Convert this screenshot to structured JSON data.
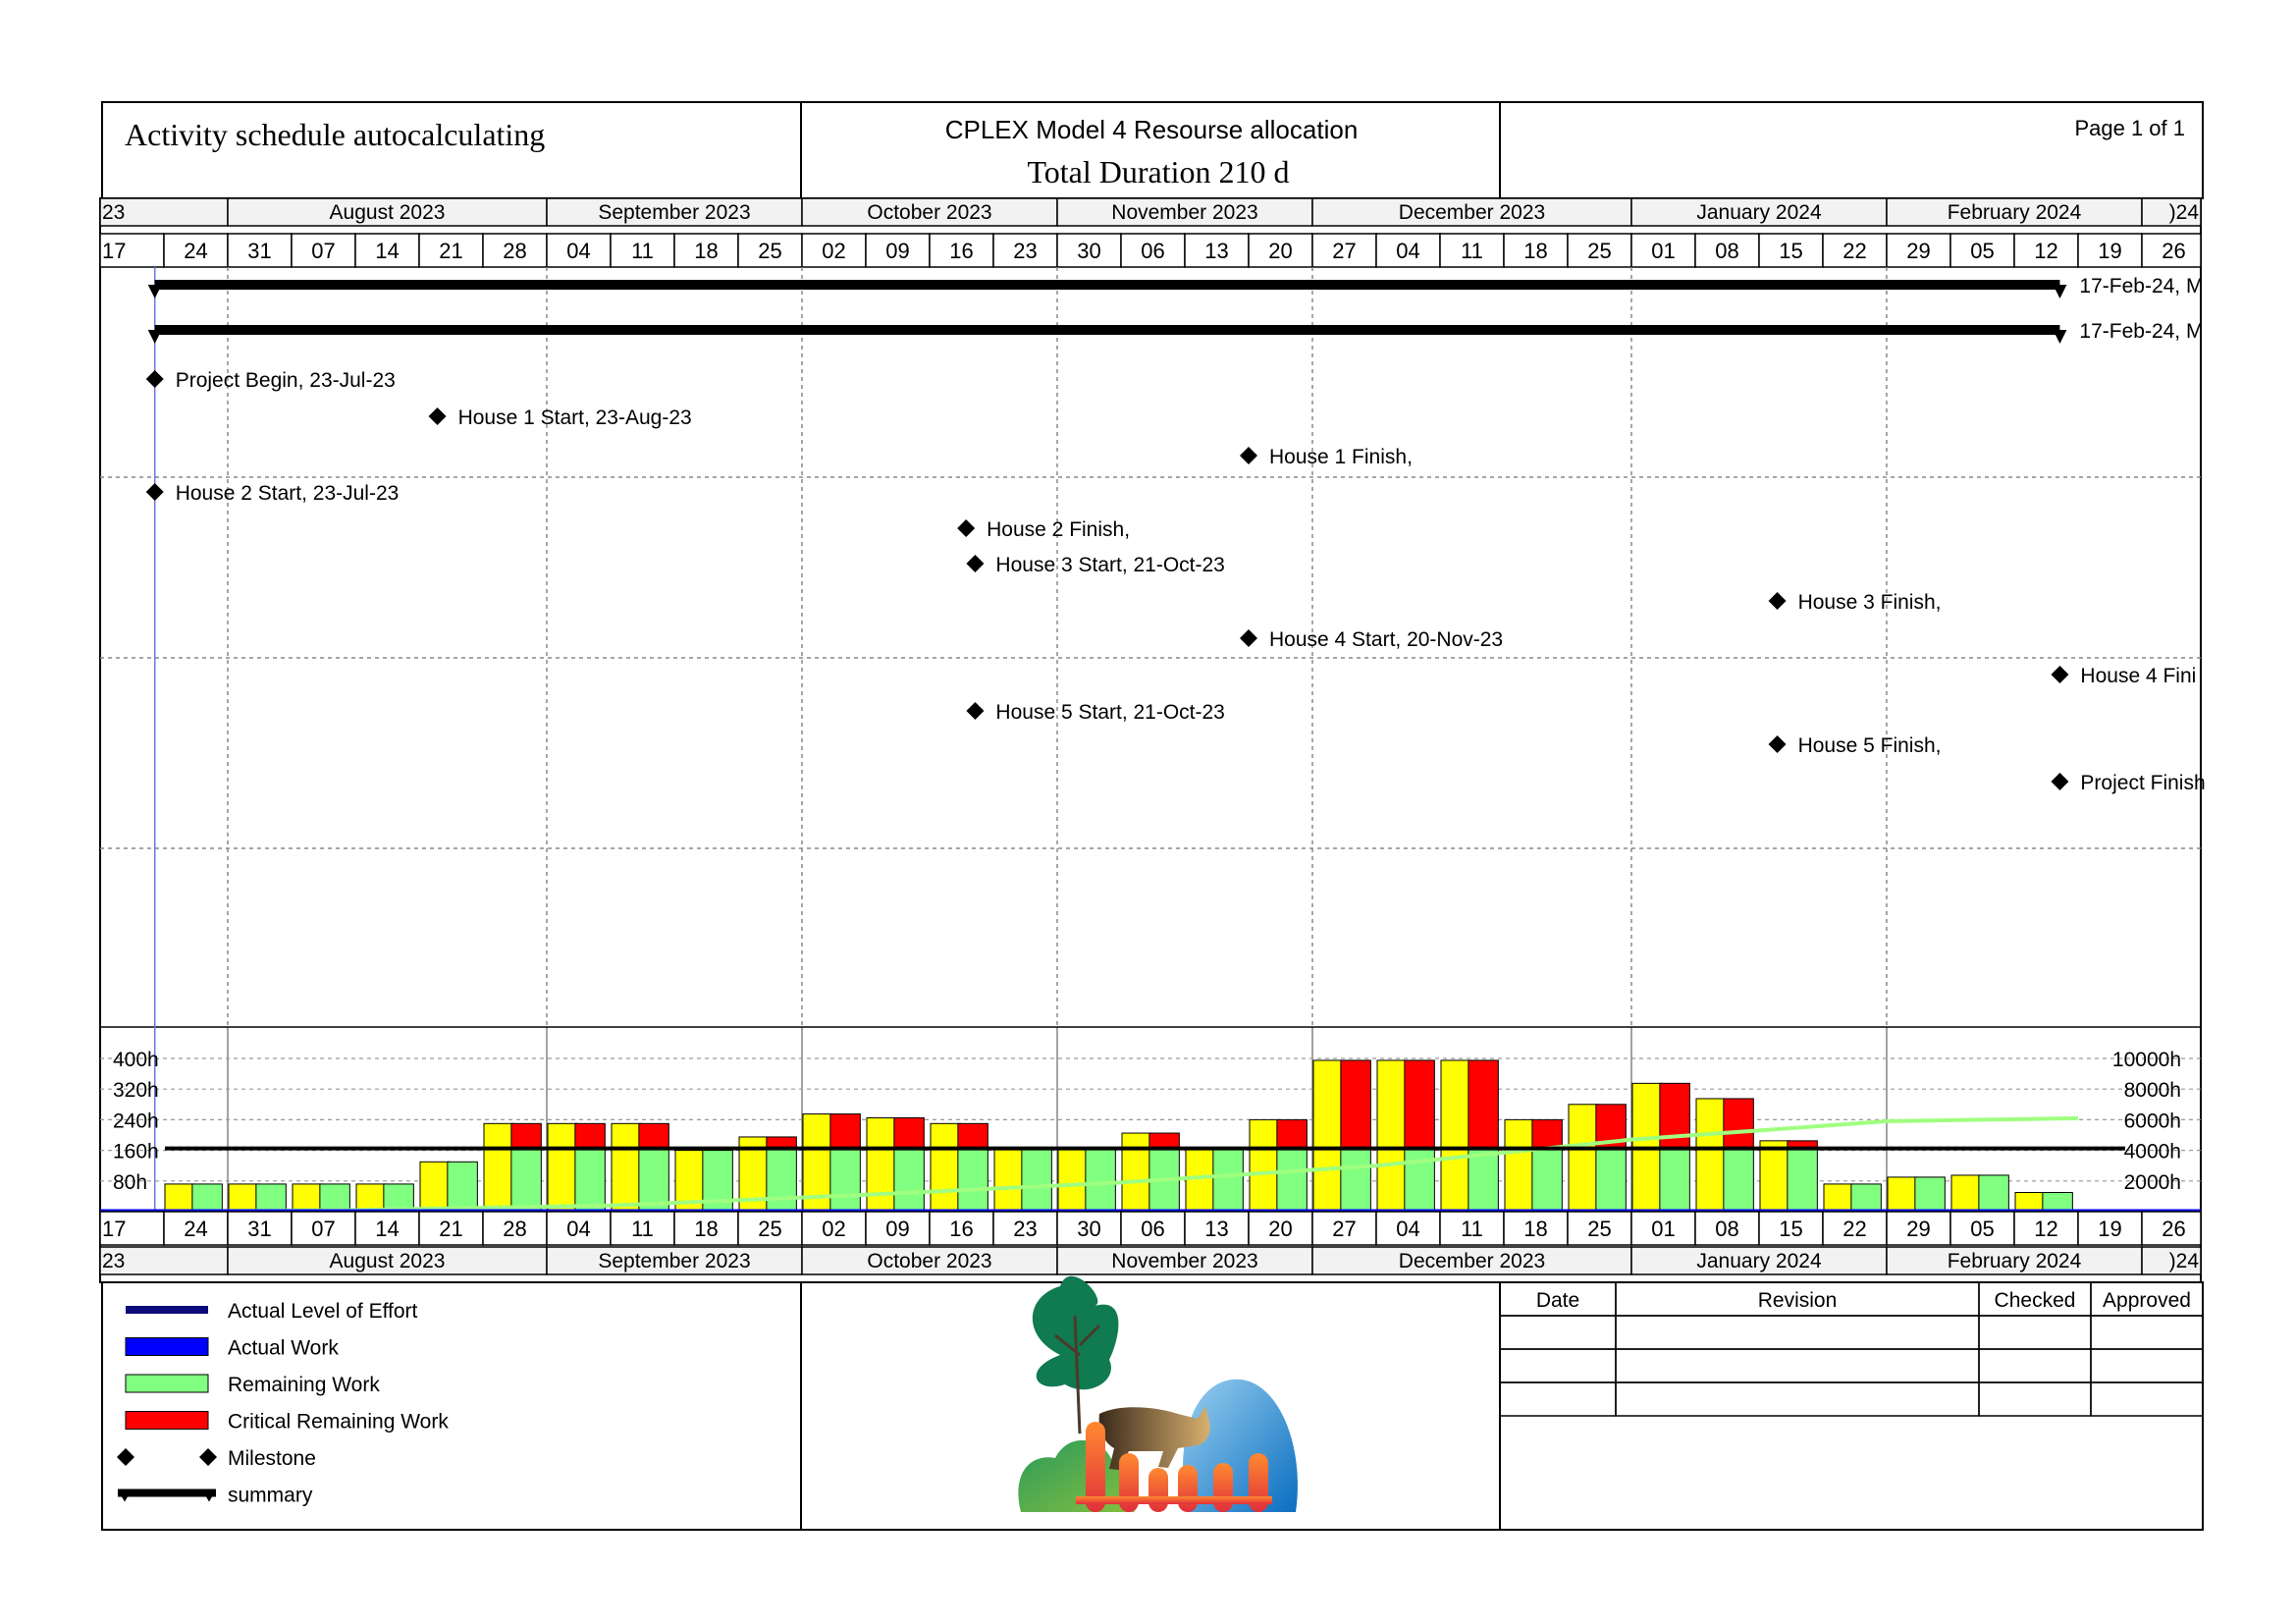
{
  "header": {
    "title": "Activity schedule autocalculating",
    "model": "CPLEX Model 4 Resourse allocation",
    "duration": "Total Duration 210 d",
    "page": "Page 1 of 1"
  },
  "timescale": {
    "start_date": "2023-07-17",
    "week_labels": [
      "17",
      "24",
      "31",
      "07",
      "14",
      "21",
      "28",
      "04",
      "11",
      "18",
      "25",
      "02",
      "09",
      "16",
      "23",
      "30",
      "06",
      "13",
      "20",
      "27",
      "04",
      "11",
      "18",
      "25",
      "01",
      "08",
      "15",
      "22",
      "29",
      "05",
      "12",
      "19",
      "26"
    ],
    "months": [
      {
        "label": "23",
        "start": "2023-07-17",
        "end": "2023-07-31"
      },
      {
        "label": "August 2023",
        "start": "2023-07-31",
        "end": "2023-09-04"
      },
      {
        "label": "September 2023",
        "start": "2023-09-04",
        "end": "2023-10-02"
      },
      {
        "label": "October 2023",
        "start": "2023-10-02",
        "end": "2023-10-30"
      },
      {
        "label": "November 2023",
        "start": "2023-10-30",
        "end": "2023-11-27"
      },
      {
        "label": "December 2023",
        "start": "2023-11-27",
        "end": "2024-01-01"
      },
      {
        "label": "January 2024",
        "start": "2024-01-01",
        "end": "2024-01-29"
      },
      {
        "label": "February 2024",
        "start": "2024-01-29",
        "end": "2024-02-26"
      },
      {
        "label": ")24",
        "start": "2024-02-26",
        "end": "2024-03-04"
      }
    ]
  },
  "gantt": {
    "summaries": [
      {
        "start": "2023-07-23",
        "end": "2024-02-17",
        "label": "17-Feb-24, M"
      },
      {
        "start": "2023-07-23",
        "end": "2024-02-17",
        "label": "17-Feb-24, M"
      }
    ],
    "milestones": [
      {
        "date": "2023-07-23",
        "label": "Project Begin, 23-Jul-23"
      },
      {
        "date": "2023-08-23",
        "label": "House 1 Start, 23-Aug-23"
      },
      {
        "date": "2023-11-20",
        "label": "House 1 Finish,"
      },
      {
        "date": "2023-07-23",
        "label": "House 2 Start, 23-Jul-23"
      },
      {
        "date": "2023-10-20",
        "label": "House 2 Finish,"
      },
      {
        "date": "2023-10-21",
        "label": "House 3 Start, 21-Oct-23"
      },
      {
        "date": "2024-01-17",
        "label": "House 3 Finish,"
      },
      {
        "date": "2023-11-20",
        "label": "House 4 Start, 20-Nov-23"
      },
      {
        "date": "2024-02-17",
        "label": "House 4 Fini"
      },
      {
        "date": "2023-10-21",
        "label": "House 5 Start, 21-Oct-23"
      },
      {
        "date": "2024-01-17",
        "label": "House 5 Finish,"
      },
      {
        "date": "2024-02-17",
        "label": "Project Finish"
      }
    ]
  },
  "chart_data": {
    "type": "bar",
    "x_unit": "half-week period start date",
    "periods": [
      "2023-07-17",
      "2023-07-20",
      "2023-07-24",
      "2023-07-27",
      "2023-07-31",
      "2023-08-03",
      "2023-08-07",
      "2023-08-10",
      "2023-08-14",
      "2023-08-17",
      "2023-08-21",
      "2023-08-24",
      "2023-08-28",
      "2023-08-31",
      "2023-09-04",
      "2023-09-07",
      "2023-09-11",
      "2023-09-14",
      "2023-09-18",
      "2023-09-21",
      "2023-09-25",
      "2023-09-28",
      "2023-10-02",
      "2023-10-05",
      "2023-10-09",
      "2023-10-12",
      "2023-10-16",
      "2023-10-19",
      "2023-10-23",
      "2023-10-26",
      "2023-10-30",
      "2023-11-02",
      "2023-11-06",
      "2023-11-09",
      "2023-11-13",
      "2023-11-16",
      "2023-11-20",
      "2023-11-23",
      "2023-11-27",
      "2023-11-30",
      "2023-12-04",
      "2023-12-07",
      "2023-12-11",
      "2023-12-14",
      "2023-12-18",
      "2023-12-21",
      "2023-12-25",
      "2023-12-28",
      "2024-01-01",
      "2024-01-04",
      "2024-01-08",
      "2024-01-11",
      "2024-01-15",
      "2024-01-18",
      "2024-01-22",
      "2024-01-25",
      "2024-01-29",
      "2024-02-01",
      "2024-02-05",
      "2024-02-08",
      "2024-02-12",
      "2024-02-15"
    ],
    "series": [
      {
        "name": "Remaining Work",
        "values": [
          0,
          0,
          72,
          72,
          72,
          72,
          72,
          72,
          72,
          72,
          130,
          130,
          230,
          230,
          230,
          230,
          230,
          230,
          160,
          160,
          195,
          195,
          255,
          255,
          245,
          245,
          230,
          230,
          168,
          168,
          168,
          168,
          205,
          205,
          168,
          168,
          240,
          240,
          395,
          395,
          395,
          395,
          395,
          395,
          240,
          240,
          280,
          280,
          335,
          335,
          295,
          295,
          185,
          185,
          72,
          72,
          90,
          90,
          95,
          95,
          50,
          50
        ]
      },
      {
        "name": "Critical Remaining Work",
        "values": [
          0,
          0,
          0,
          0,
          0,
          0,
          0,
          0,
          0,
          0,
          0,
          0,
          0,
          1,
          0,
          1,
          0,
          1,
          0,
          0,
          0,
          1,
          0,
          1,
          0,
          1,
          0,
          1,
          0,
          0,
          0,
          0,
          0,
          1,
          0,
          0,
          0,
          1,
          0,
          1,
          0,
          1,
          0,
          1,
          0,
          1,
          0,
          1,
          0,
          1,
          0,
          1,
          0,
          1,
          0,
          0,
          0,
          0,
          0,
          0,
          0,
          0
        ]
      },
      {
        "name": "Actual Level of Effort",
        "values": []
      },
      {
        "name": "Actual Work",
        "values": []
      }
    ],
    "level_line_h": 165,
    "cumulative_h": [
      {
        "date": "2023-07-17",
        "value": 0
      },
      {
        "date": "2023-08-14",
        "value": 100
      },
      {
        "date": "2023-09-11",
        "value": 400
      },
      {
        "date": "2023-10-09",
        "value": 1100
      },
      {
        "date": "2023-11-06",
        "value": 1900
      },
      {
        "date": "2023-12-04",
        "value": 3000
      },
      {
        "date": "2024-01-01",
        "value": 4700
      },
      {
        "date": "2024-01-29",
        "value": 5900
      },
      {
        "date": "2024-02-19",
        "value": 6100
      }
    ],
    "ylabels_left": [
      "400h",
      "320h",
      "240h",
      "160h",
      "80h"
    ],
    "ylabels_right": [
      "10000h",
      "8000h",
      "6000h",
      "4000h",
      "2000h"
    ],
    "ylim_left": [
      0,
      400
    ],
    "ylim_right": [
      0,
      10000
    ]
  },
  "legend": [
    {
      "key": "Actual Level of Effort",
      "label": "Actual Level of Effort",
      "color": "#0a0a7a"
    },
    {
      "key": "Actual Work",
      "label": "Actual Work",
      "color": "#0000ff"
    },
    {
      "key": "Remaining Work",
      "label": "Remaining Work",
      "color": "#80ff80"
    },
    {
      "key": "Critical Remaining Work",
      "label": "Critical Remaining Work",
      "color": "#ff0000"
    },
    {
      "key": "Milestone",
      "label": "Milestone",
      "color": "#000000"
    },
    {
      "key": "summary",
      "label": "summary",
      "color": "#000000"
    }
  ],
  "colors": {
    "yellow_bar": "#ffff00",
    "remaining": "#80ff80",
    "critical": "#ff0000",
    "cumulative": "#a0ff80",
    "today_line": "#6677dd"
  },
  "revision_table": {
    "headers": [
      "Date",
      "Revision",
      "Checked",
      "Approved"
    ],
    "rows": [
      [
        "",
        "",
        "",
        ""
      ],
      [
        "",
        "",
        "",
        ""
      ],
      [
        "",
        "",
        "",
        ""
      ]
    ]
  },
  "logo": {
    "icon": "tree-fox-fence-logo"
  }
}
